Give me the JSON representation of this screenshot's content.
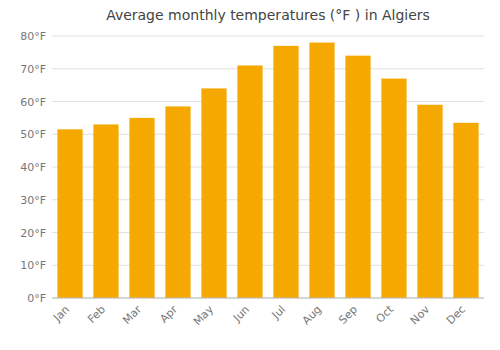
{
  "chart_data": {
    "type": "bar",
    "title": "Average monthly temperatures (°F ) in Algiers",
    "categories": [
      "Jan",
      "Feb",
      "Mar",
      "Apr",
      "May",
      "Jun",
      "Jul",
      "Aug",
      "Sep",
      "Oct",
      "Nov",
      "Dec"
    ],
    "values": [
      51.5,
      53.0,
      55.0,
      58.5,
      64.0,
      71.0,
      77.0,
      78.0,
      74.0,
      67.0,
      59.0,
      53.5
    ],
    "color": "#F5A800",
    "ylim": [
      0,
      80
    ],
    "yticks": [
      {
        "value": 0,
        "label": "0°F"
      },
      {
        "value": 10,
        "label": "10°F"
      },
      {
        "value": 20,
        "label": "20°F"
      },
      {
        "value": 30,
        "label": "30°F"
      },
      {
        "value": 40,
        "label": "40°F"
      },
      {
        "value": 50,
        "label": "50°F"
      },
      {
        "value": 60,
        "label": "60°F"
      },
      {
        "value": 70,
        "label": "70°F"
      },
      {
        "value": 80,
        "label": "80°F"
      }
    ],
    "grid": true
  }
}
